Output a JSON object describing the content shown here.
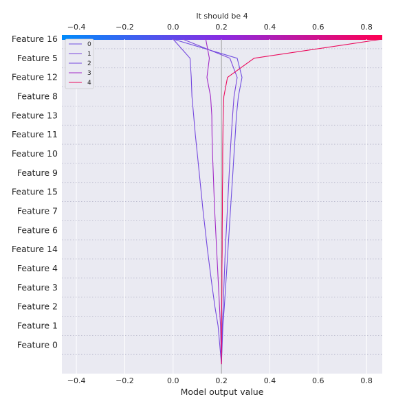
{
  "chart_data": {
    "type": "line",
    "chart_kind": "shap-multioutput-decision-plot",
    "title": "It should be 4",
    "xlabel": "Model output value",
    "xlim": [
      -0.46,
      0.865
    ],
    "x_ticks": [
      -0.4,
      -0.2,
      0.0,
      0.2,
      0.4,
      0.6,
      0.8
    ],
    "base_value": 0.2,
    "grid": true,
    "legend_position": "top-left",
    "features": [
      "Feature 16",
      "Feature 5",
      "Feature 12",
      "Feature 8",
      "Feature 13",
      "Feature 11",
      "Feature 10",
      "Feature 9",
      "Feature 15",
      "Feature 7",
      "Feature 6",
      "Feature 14",
      "Feature 4",
      "Feature 3",
      "Feature 2",
      "Feature 1",
      "Feature 0"
    ],
    "colorbar": {
      "low_color": "#008bfb",
      "mid_color": "#8a2be2",
      "high_color": "#ff0052"
    },
    "series": [
      {
        "name": "0",
        "color": "#6f4de0",
        "values": [
          0.0,
          0.265,
          0.285,
          0.27,
          0.262,
          0.257,
          0.252,
          0.247,
          0.242,
          0.237,
          0.232,
          0.227,
          0.222,
          0.217,
          0.212,
          0.206,
          0.2
        ]
      },
      {
        "name": "1",
        "color": "#7a46dc",
        "values": [
          0.04,
          0.235,
          0.265,
          0.252,
          0.246,
          0.241,
          0.236,
          0.232,
          0.228,
          0.224,
          0.22,
          0.216,
          0.213,
          0.21,
          0.207,
          0.204,
          0.2
        ]
      },
      {
        "name": "2",
        "color": "#7447de",
        "values": [
          0.0,
          0.07,
          0.075,
          0.078,
          0.085,
          0.092,
          0.1,
          0.108,
          0.116,
          0.124,
          0.133,
          0.142,
          0.152,
          0.162,
          0.173,
          0.186,
          0.2
        ]
      },
      {
        "name": "3",
        "color": "#a128c6",
        "values": [
          0.135,
          0.15,
          0.14,
          0.155,
          0.16,
          0.161,
          0.163,
          0.166,
          0.169,
          0.172,
          0.176,
          0.18,
          0.184,
          0.188,
          0.192,
          0.196,
          0.2
        ]
      },
      {
        "name": "4",
        "color": "#eb0a5c",
        "values": [
          0.865,
          0.335,
          0.225,
          0.21,
          0.207,
          0.206,
          0.205,
          0.205,
          0.204,
          0.204,
          0.203,
          0.203,
          0.202,
          0.202,
          0.201,
          0.201,
          0.2
        ]
      }
    ]
  }
}
